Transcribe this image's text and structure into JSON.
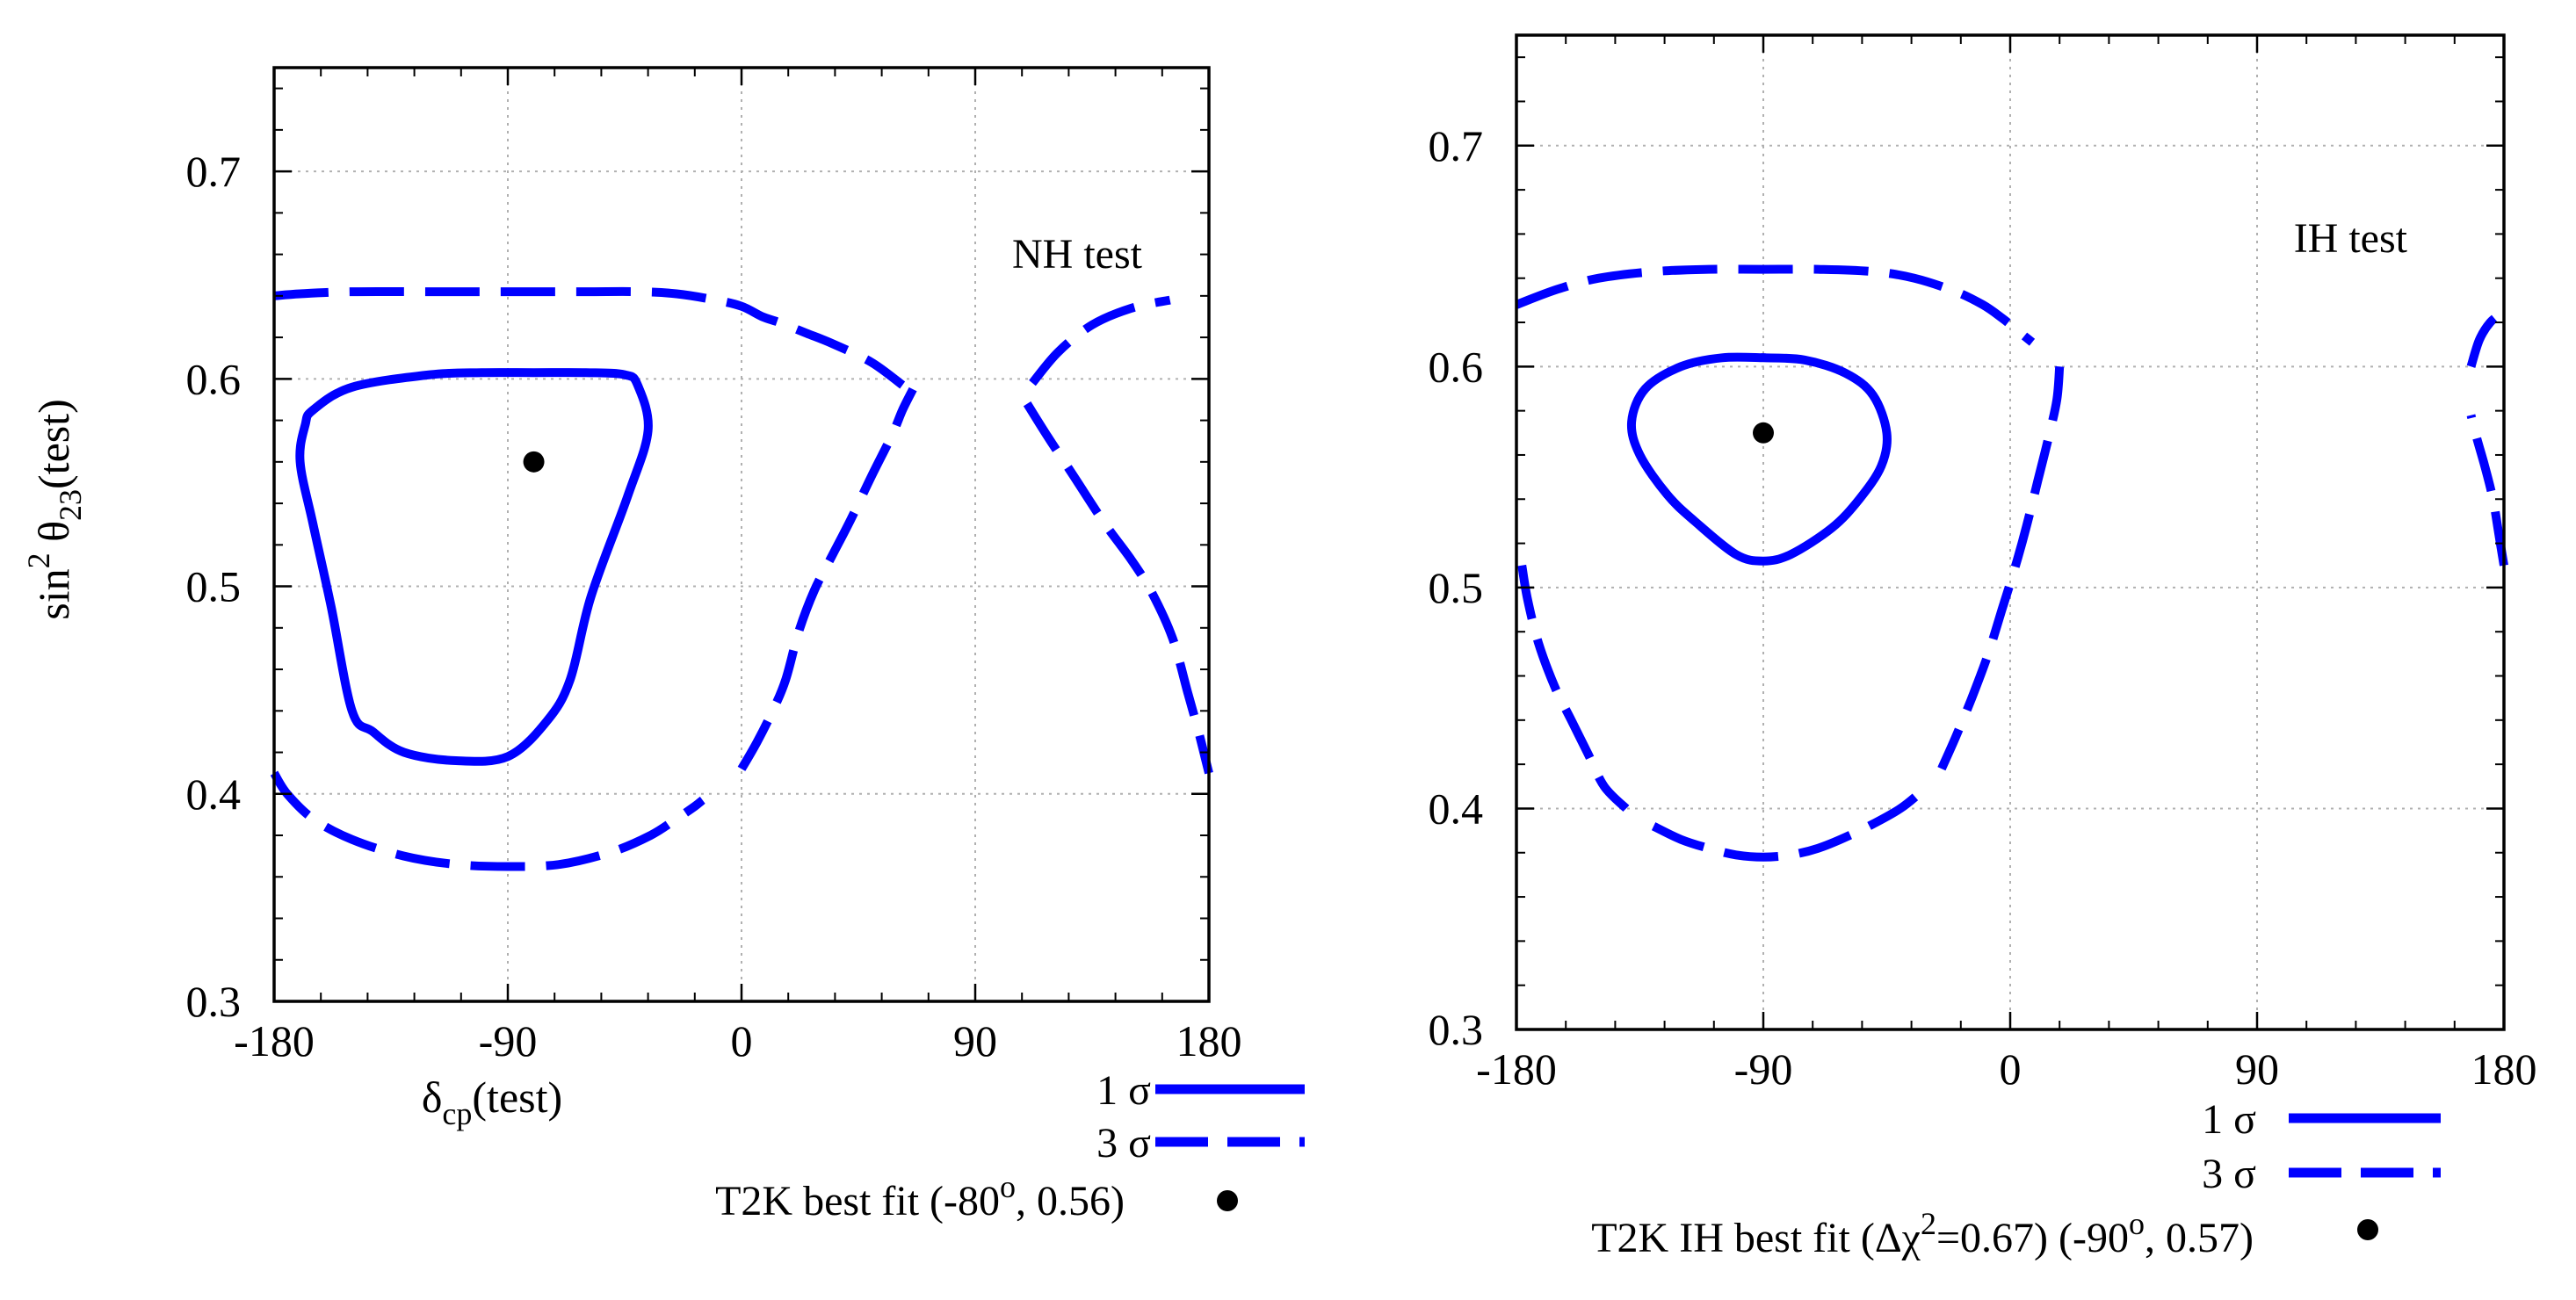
{
  "colors": {
    "contour": "#0000ff",
    "point": "#000000",
    "grid": "#b0b0b0",
    "axes": "#000000"
  },
  "chart_data": [
    {
      "type": "line",
      "title": "",
      "annotation": "NH test",
      "xlabel": {
        "main": "δ",
        "sub": "cp",
        "rest": "(test)"
      },
      "ylabel": {
        "prefix": "sin",
        "sup": "2",
        "theta": " θ",
        "sub": "23",
        "rest": "(test)"
      },
      "xlim": [
        -180,
        180
      ],
      "ylim": [
        0.3,
        0.75
      ],
      "xticks": [
        -180,
        -90,
        0,
        90,
        180
      ],
      "xtick_labels": [
        "-180",
        "-90",
        "0",
        "90",
        "180"
      ],
      "yticks": [
        0.3,
        0.4,
        0.5,
        0.6,
        0.7
      ],
      "ytick_labels": [
        "0.3",
        "0.4",
        "0.5",
        "0.6",
        "0.7"
      ],
      "grid": true,
      "legend": {
        "position": "below-right",
        "entries": [
          {
            "label": "1 σ",
            "style": "solid"
          },
          {
            "label": "3 σ",
            "style": "dashed"
          },
          {
            "label_main": "T2K best fit (-80",
            "label_sup": "o",
            "label_end": ", 0.56)",
            "style": "point"
          }
        ]
      },
      "series": [
        {
          "name": "1 σ",
          "style": "solid",
          "closed": true,
          "x": [
            -165,
            -150,
            -120,
            -100,
            -80,
            -60,
            -45,
            -40,
            -36,
            -44,
            -58,
            -66,
            -75,
            -90,
            -110,
            -130,
            -142,
            -150,
            -158,
            -165,
            -170,
            -168
          ],
          "y": [
            0.585,
            0.596,
            0.602,
            0.603,
            0.603,
            0.603,
            0.602,
            0.597,
            0.575,
            0.543,
            0.495,
            0.455,
            0.435,
            0.418,
            0.416,
            0.42,
            0.43,
            0.44,
            0.49,
            0.53,
            0.56,
            0.578
          ]
        },
        {
          "name": "3 σ",
          "style": "dashed",
          "closed": false,
          "x": [
            -180,
            -170,
            -150,
            -120,
            -90,
            -60,
            -40,
            -25,
            -10,
            0,
            8,
            15,
            25,
            35,
            50,
            62
          ],
          "y": [
            0.64,
            0.641,
            0.642,
            0.642,
            0.642,
            0.642,
            0.642,
            0.641,
            0.638,
            0.635,
            0.63,
            0.627,
            0.622,
            0.617,
            0.608,
            0.597
          ]
        },
        {
          "name": "3 σ",
          "style": "dashed",
          "closed": false,
          "x": [
            -180,
            -175,
            -165,
            -150,
            -130,
            -110,
            -90,
            -70,
            -50,
            -35,
            -25,
            -18,
            -15
          ],
          "y": [
            0.41,
            0.4,
            0.388,
            0.378,
            0.37,
            0.366,
            0.365,
            0.366,
            0.372,
            0.38,
            0.388,
            0.394,
            0.397
          ]
        },
        {
          "name": "3 σ",
          "style": "dashed",
          "closed": false,
          "x": [
            0,
            6,
            12,
            17,
            22,
            28,
            35,
            42,
            50,
            58,
            62,
            66
          ],
          "y": [
            0.412,
            0.425,
            0.44,
            0.455,
            0.478,
            0.498,
            0.515,
            0.532,
            0.553,
            0.573,
            0.585,
            0.595
          ]
        },
        {
          "name": "3 σ",
          "style": "dashed",
          "closed": false,
          "x": [
            112,
            122,
            135,
            150,
            165
          ],
          "y": [
            0.598,
            0.613,
            0.626,
            0.634,
            0.638
          ]
        },
        {
          "name": "3 σ",
          "style": "dashed",
          "closed": false,
          "x": [
            110,
            118,
            128,
            140,
            150,
            158,
            166,
            172,
            176,
            180
          ],
          "y": [
            0.588,
            0.572,
            0.553,
            0.53,
            0.513,
            0.497,
            0.475,
            0.448,
            0.43,
            0.41
          ]
        }
      ],
      "points": [
        {
          "name": "T2K best fit",
          "x": -80,
          "y": 0.56
        }
      ]
    },
    {
      "type": "line",
      "title": "",
      "annotation": "IH test",
      "xlabel": null,
      "ylabel": null,
      "xlim": [
        -180,
        180
      ],
      "ylim": [
        0.3,
        0.75
      ],
      "xticks": [
        -180,
        -90,
        0,
        90,
        180
      ],
      "xtick_labels": [
        "-180",
        "-90",
        "0",
        "90",
        "180"
      ],
      "yticks": [
        0.3,
        0.4,
        0.5,
        0.6,
        0.7
      ],
      "ytick_labels": [
        "0.3",
        "0.4",
        "0.5",
        "0.6",
        "0.7"
      ],
      "grid": true,
      "legend": {
        "position": "below-right",
        "entries": [
          {
            "label": "1 σ",
            "style": "solid"
          },
          {
            "label": "3 σ",
            "style": "dashed"
          },
          {
            "label_main": "T2K IH best fit (Δχ",
            "label_sup": "2",
            "label_mid": "=0.67) (-90",
            "label_sup2": "o",
            "label_end": ", 0.57)",
            "style": "point"
          }
        ]
      },
      "series": [
        {
          "name": "1 σ",
          "style": "solid",
          "closed": true,
          "x": [
            -90,
            -75,
            -60,
            -50,
            -45,
            -47,
            -55,
            -65,
            -80,
            -90,
            -100,
            -115,
            -125,
            -135,
            -138,
            -133,
            -120,
            -105,
            -90
          ],
          "y": [
            0.604,
            0.603,
            0.597,
            0.587,
            0.57,
            0.555,
            0.54,
            0.527,
            0.515,
            0.512,
            0.515,
            0.53,
            0.542,
            0.56,
            0.575,
            0.59,
            0.6,
            0.604,
            0.604
          ]
        },
        {
          "name": "3 σ",
          "style": "dashed",
          "closed": false,
          "x": [
            -180,
            -165,
            -150,
            -130,
            -110,
            -90,
            -70,
            -50,
            -35,
            -20,
            -10,
            -3,
            3,
            8
          ],
          "y": [
            0.628,
            0.635,
            0.64,
            0.643,
            0.644,
            0.644,
            0.644,
            0.643,
            0.64,
            0.634,
            0.628,
            0.622,
            0.616,
            0.611
          ]
        },
        {
          "name": "3 σ",
          "style": "dashed",
          "closed": false,
          "x": [
            18,
            17,
            14,
            10,
            6,
            2,
            -3,
            -8,
            -14,
            -20,
            -25
          ],
          "y": [
            0.6,
            0.585,
            0.568,
            0.548,
            0.528,
            0.51,
            0.49,
            0.47,
            0.45,
            0.432,
            0.418
          ]
        },
        {
          "name": "3 σ",
          "style": "dashed",
          "closed": false,
          "x": [
            -178,
            -176,
            -172,
            -166,
            -160,
            -154,
            -148,
            -140
          ],
          "y": [
            0.51,
            0.495,
            0.475,
            0.455,
            0.44,
            0.425,
            0.41,
            0.4
          ]
        },
        {
          "name": "3 σ",
          "style": "dashed",
          "closed": false,
          "x": [
            -130,
            -120,
            -110,
            -100,
            -90,
            -80,
            -70,
            -60,
            -50,
            -40,
            -32
          ],
          "y": [
            0.392,
            0.386,
            0.382,
            0.379,
            0.378,
            0.379,
            0.382,
            0.387,
            0.393,
            0.4,
            0.408
          ]
        },
        {
          "name": "3 σ",
          "style": "dashed",
          "closed": false,
          "x": [
            180,
            178,
            176,
            173,
            170,
            168
          ],
          "y": [
            0.51,
            0.525,
            0.54,
            0.555,
            0.568,
            0.578
          ]
        },
        {
          "name": "3 σ",
          "style": "dashed",
          "closed": false,
          "x": [
            168,
            171,
            175,
            180
          ],
          "y": [
            0.6,
            0.612,
            0.62,
            0.625
          ]
        }
      ],
      "points": [
        {
          "name": "T2K IH best fit",
          "x": -90,
          "y": 0.57
        }
      ]
    }
  ]
}
